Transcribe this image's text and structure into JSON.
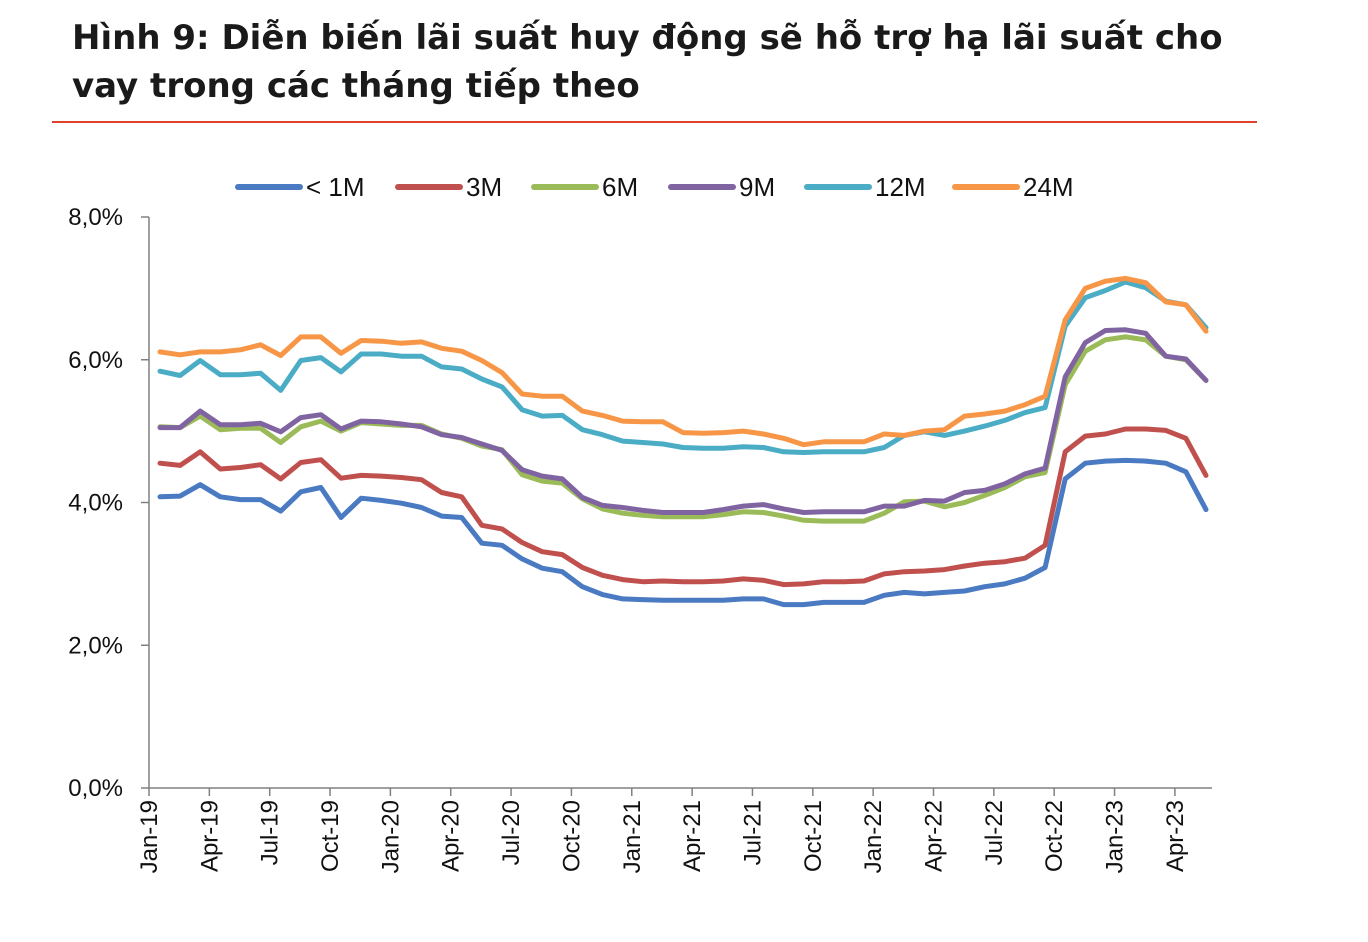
{
  "title": "Hình 9: Diễn biến lãi suất huy động sẽ hỗ trợ hạ lãi suất cho vay trong các tháng tiếp theo",
  "chart_data": {
    "type": "line",
    "title": "Hình 9: Diễn biến lãi suất huy động sẽ hỗ trợ hạ lãi suất cho vay trong các tháng tiếp theo",
    "xlabel": "",
    "ylabel": "",
    "ylim": [
      0,
      8
    ],
    "yticks": [
      0,
      2,
      4,
      6,
      8
    ],
    "ytick_labels": [
      "0,0%",
      "2,0%",
      "4,0%",
      "6,0%",
      "8,0%"
    ],
    "grid": false,
    "legend_position": "top",
    "categories": [
      "Jan-19",
      "Feb-19",
      "Mar-19",
      "Apr-19",
      "May-19",
      "Jun-19",
      "Jul-19",
      "Aug-19",
      "Sep-19",
      "Oct-19",
      "Nov-19",
      "Dec-19",
      "Jan-20",
      "Feb-20",
      "Mar-20",
      "Apr-20",
      "May-20",
      "Jun-20",
      "Jul-20",
      "Aug-20",
      "Sep-20",
      "Oct-20",
      "Nov-20",
      "Dec-20",
      "Jan-21",
      "Feb-21",
      "Mar-21",
      "Apr-21",
      "May-21",
      "Jun-21",
      "Jul-21",
      "Aug-21",
      "Sep-21",
      "Oct-21",
      "Nov-21",
      "Dec-21",
      "Jan-22",
      "Feb-22",
      "Mar-22",
      "Apr-22",
      "May-22",
      "Jun-22",
      "Jul-22",
      "Aug-22",
      "Sep-22",
      "Oct-22",
      "Nov-22",
      "Dec-22",
      "Jan-23",
      "Feb-23",
      "Mar-23",
      "Apr-23",
      "May-23"
    ],
    "x_tick_labels": [
      "Jan-19",
      "Apr-19",
      "Jul-19",
      "Oct-19",
      "Jan-20",
      "Apr-20",
      "Jul-20",
      "Oct-20",
      "Jan-21",
      "Apr-21",
      "Jul-21",
      "Oct-21",
      "Jan-22",
      "Apr-22",
      "Jul-22",
      "Oct-22",
      "Jan-23",
      "Apr-23"
    ],
    "series": [
      {
        "name": "< 1M",
        "color": "#4a7ac2",
        "values": [
          4.08,
          4.09,
          4.25,
          4.08,
          4.04,
          4.04,
          3.88,
          4.15,
          4.21,
          3.79,
          4.06,
          4.03,
          3.99,
          3.93,
          3.81,
          3.79,
          3.43,
          3.4,
          3.21,
          3.08,
          3.03,
          2.82,
          2.71,
          2.65,
          2.64,
          2.63,
          2.63,
          2.63,
          2.63,
          2.65,
          2.65,
          2.57,
          2.57,
          2.6,
          2.6,
          2.6,
          2.7,
          2.74,
          2.72,
          2.74,
          2.76,
          2.82,
          2.86,
          2.94,
          3.09,
          4.33,
          4.55,
          4.58,
          4.59,
          4.58,
          4.55,
          4.43,
          3.9
        ]
      },
      {
        "name": "3M",
        "color": "#c0504d",
        "values": [
          4.55,
          4.52,
          4.71,
          4.47,
          4.49,
          4.53,
          4.33,
          4.56,
          4.6,
          4.34,
          4.38,
          4.37,
          4.35,
          4.32,
          4.14,
          4.08,
          3.68,
          3.63,
          3.44,
          3.31,
          3.27,
          3.09,
          2.98,
          2.92,
          2.89,
          2.9,
          2.89,
          2.89,
          2.9,
          2.93,
          2.91,
          2.85,
          2.86,
          2.89,
          2.89,
          2.9,
          3.0,
          3.03,
          3.04,
          3.06,
          3.11,
          3.15,
          3.17,
          3.22,
          3.4,
          4.71,
          4.93,
          4.96,
          5.03,
          5.03,
          5.01,
          4.9,
          4.38
        ]
      },
      {
        "name": "6M",
        "color": "#9bbb59",
        "values": [
          5.06,
          5.05,
          5.21,
          5.02,
          5.04,
          5.04,
          4.84,
          5.06,
          5.14,
          5.0,
          5.12,
          5.1,
          5.08,
          5.08,
          4.96,
          4.9,
          4.79,
          4.74,
          4.39,
          4.3,
          4.27,
          4.05,
          3.91,
          3.85,
          3.82,
          3.8,
          3.8,
          3.8,
          3.83,
          3.87,
          3.86,
          3.81,
          3.75,
          3.74,
          3.74,
          3.74,
          3.85,
          4.01,
          4.02,
          3.94,
          4.0,
          4.1,
          4.21,
          4.36,
          4.42,
          5.65,
          6.12,
          6.28,
          6.32,
          6.28,
          6.05,
          6.0,
          5.71
        ]
      },
      {
        "name": "9M",
        "color": "#8064a2",
        "values": [
          5.05,
          5.05,
          5.28,
          5.09,
          5.09,
          5.11,
          4.99,
          5.19,
          5.23,
          5.03,
          5.14,
          5.13,
          5.1,
          5.06,
          4.95,
          4.91,
          4.82,
          4.73,
          4.46,
          4.37,
          4.33,
          4.07,
          3.96,
          3.93,
          3.89,
          3.86,
          3.86,
          3.86,
          3.9,
          3.95,
          3.97,
          3.91,
          3.86,
          3.87,
          3.87,
          3.87,
          3.95,
          3.95,
          4.03,
          4.02,
          4.14,
          4.17,
          4.26,
          4.4,
          4.48,
          5.76,
          6.24,
          6.41,
          6.42,
          6.37,
          6.05,
          6.01,
          5.71
        ]
      },
      {
        "name": "12M",
        "color": "#4bacc6",
        "values": [
          5.84,
          5.78,
          5.99,
          5.79,
          5.79,
          5.81,
          5.57,
          5.99,
          6.03,
          5.83,
          6.08,
          6.08,
          6.05,
          6.05,
          5.9,
          5.87,
          5.73,
          5.62,
          5.3,
          5.21,
          5.22,
          5.02,
          4.95,
          4.86,
          4.84,
          4.82,
          4.77,
          4.76,
          4.76,
          4.78,
          4.77,
          4.71,
          4.7,
          4.71,
          4.71,
          4.71,
          4.77,
          4.94,
          4.99,
          4.94,
          5.0,
          5.07,
          5.15,
          5.26,
          5.33,
          6.47,
          6.87,
          6.97,
          7.09,
          7.01,
          6.82,
          6.77,
          6.45
        ]
      },
      {
        "name": "24M",
        "color": "#f79646",
        "values": [
          6.11,
          6.07,
          6.11,
          6.11,
          6.14,
          6.21,
          6.06,
          6.32,
          6.32,
          6.09,
          6.27,
          6.26,
          6.23,
          6.25,
          6.16,
          6.12,
          5.99,
          5.82,
          5.52,
          5.49,
          5.49,
          5.28,
          5.22,
          5.14,
          5.13,
          5.13,
          4.98,
          4.97,
          4.98,
          5.0,
          4.96,
          4.9,
          4.81,
          4.85,
          4.85,
          4.85,
          4.96,
          4.94,
          5.0,
          5.02,
          5.21,
          5.24,
          5.28,
          5.37,
          5.49,
          6.56,
          7.0,
          7.1,
          7.14,
          7.08,
          6.81,
          6.77,
          6.4
        ]
      }
    ]
  }
}
